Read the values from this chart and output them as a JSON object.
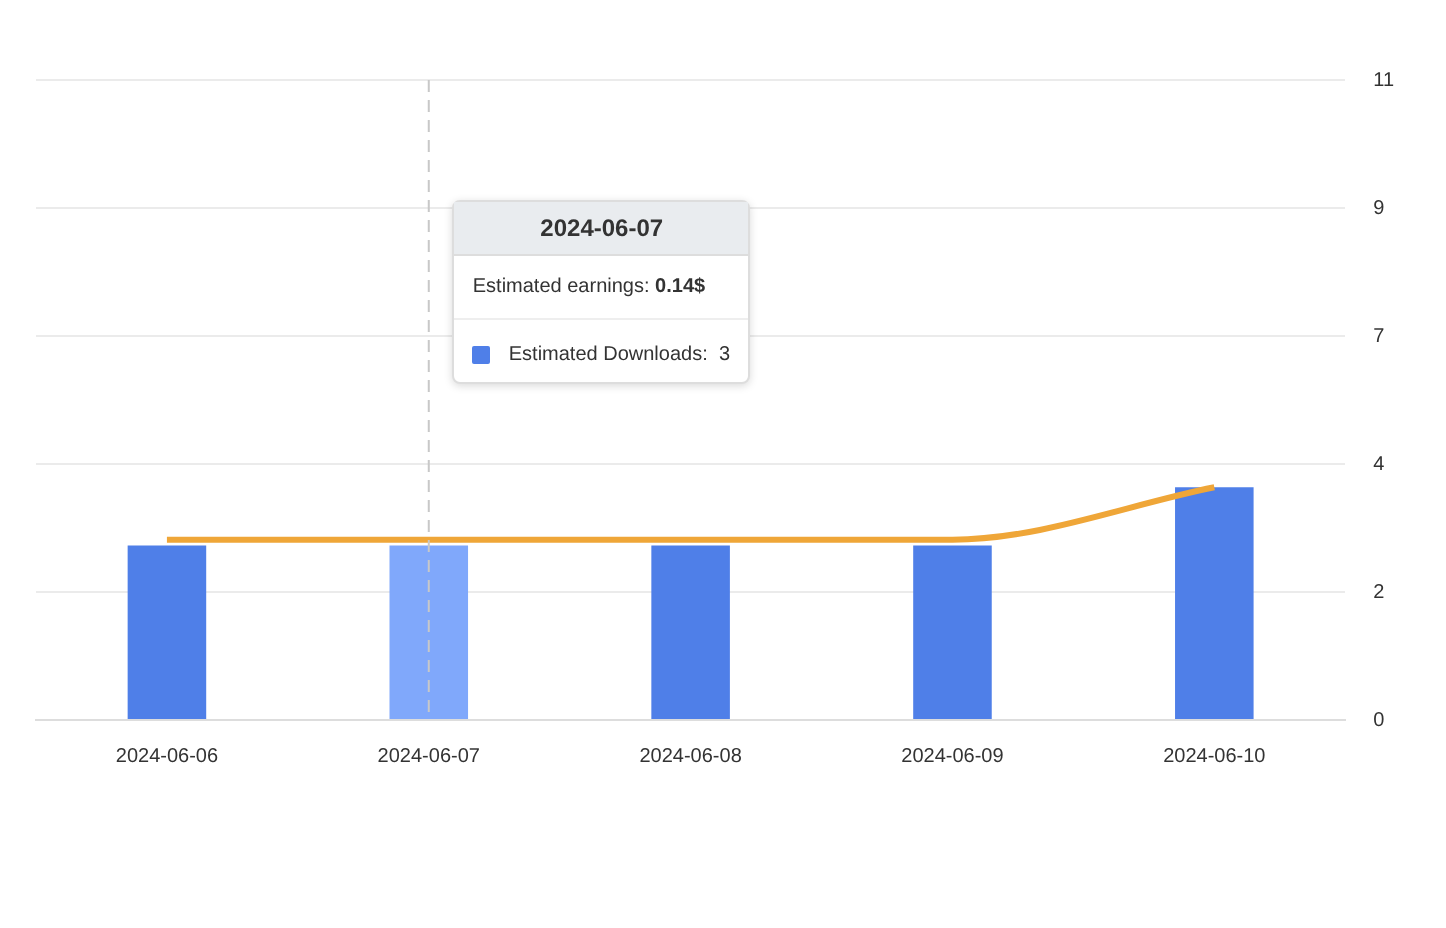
{
  "chart_data": {
    "type": "bar",
    "categories": [
      "2024-06-06",
      "2024-06-07",
      "2024-06-08",
      "2024-06-09",
      "2024-06-10"
    ],
    "series": [
      {
        "color": "#4f7fe8",
        "colors": [
          "#4f7fe8",
          "#80a8fb",
          "#4f7fe8",
          "#4f7fe8",
          "#4f7fe8"
        ],
        "values": [
          3,
          3,
          3,
          3,
          4
        ]
      },
      {
        "type": "line",
        "color": "#efa638",
        "values": [
          3.1,
          3.1,
          3.1,
          3.1,
          4.0
        ]
      }
    ],
    "ylim": [
      0,
      11
    ],
    "yticks": [
      0,
      {
        "value": 2.2,
        "label": "2"
      },
      {
        "value": 4.4,
        "label": "4"
      },
      {
        "value": 6.6,
        "label": "7"
      },
      {
        "value": 8.8,
        "label": "9"
      },
      11
    ],
    "grid": "y",
    "marker": "none",
    "ref_lines": [
      {
        "axis": "x",
        "value": "2024-06-07",
        "color": "#c8c8c8",
        "line_style": "dashed"
      }
    ],
    "annotations": [
      "2024-06-07",
      "Estimated earnings:",
      "0.14$",
      "Estimated Downloads:",
      "3"
    ]
  }
}
